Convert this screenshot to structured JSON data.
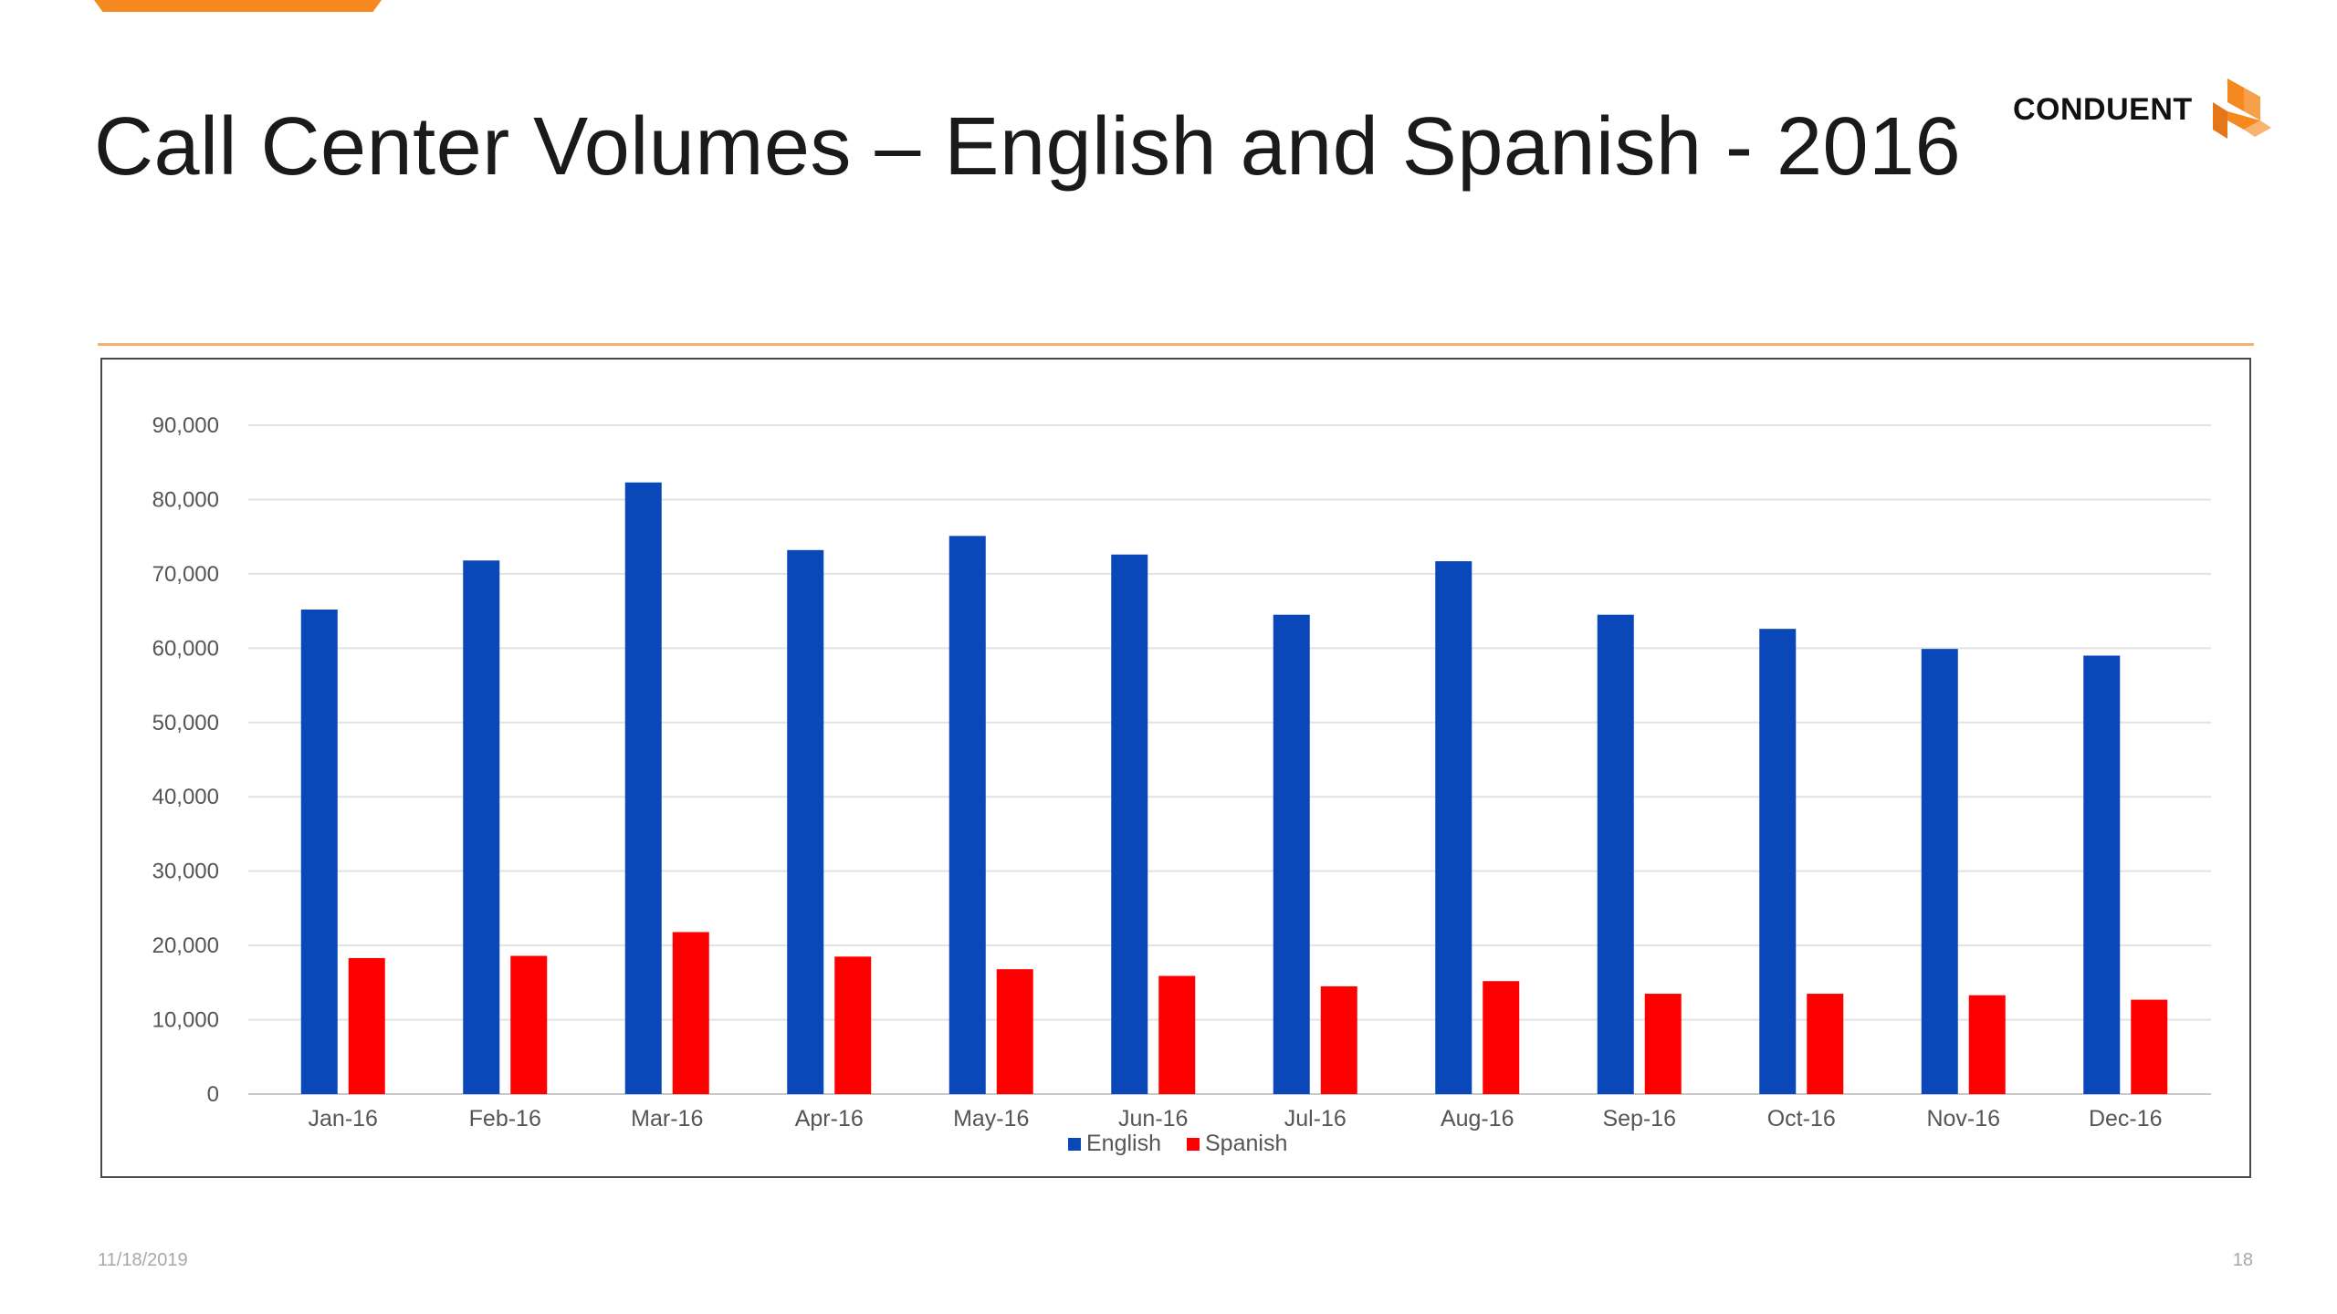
{
  "slide": {
    "title": "Call Center Volumes – English and Spanish - 2016",
    "logo_text": "CONDUENT",
    "footer_date": "11/18/2019",
    "page_number": "18"
  },
  "colors": {
    "accent": "#f5891f",
    "english": "#0a47b9",
    "spanish": "#ff0000"
  },
  "chart_data": {
    "type": "bar",
    "title": "",
    "xlabel": "",
    "ylabel": "",
    "categories": [
      "Jan-16",
      "Feb-16",
      "Mar-16",
      "Apr-16",
      "May-16",
      "Jun-16",
      "Jul-16",
      "Aug-16",
      "Sep-16",
      "Oct-16",
      "Nov-16",
      "Dec-16"
    ],
    "series": [
      {
        "name": "English",
        "color": "#0a47b9",
        "values": [
          65200,
          71800,
          82300,
          73200,
          75100,
          72600,
          64500,
          71700,
          64500,
          62600,
          59900,
          59000
        ]
      },
      {
        "name": "Spanish",
        "color": "#ff0000",
        "values": [
          18300,
          18600,
          21800,
          18500,
          16800,
          15900,
          14500,
          15200,
          13500,
          13500,
          13300,
          12700
        ]
      }
    ],
    "ylim": [
      0,
      90000
    ],
    "yticks": [
      0,
      10000,
      20000,
      30000,
      40000,
      50000,
      60000,
      70000,
      80000,
      90000
    ],
    "ytick_labels": [
      "0",
      "10,000",
      "20,000",
      "30,000",
      "40,000",
      "50,000",
      "60,000",
      "70,000",
      "80,000",
      "90,000"
    ],
    "grid": true,
    "legend": "bottom-center"
  }
}
